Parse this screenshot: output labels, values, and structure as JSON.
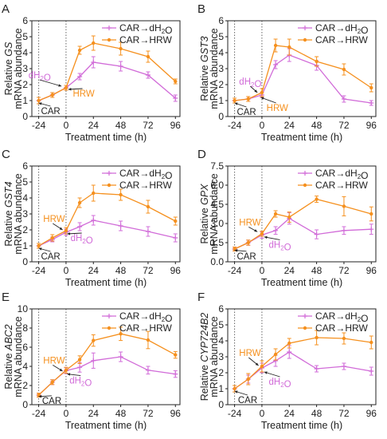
{
  "colors": {
    "water": "#d16bd8",
    "hrw": "#f5901e",
    "axis": "#222222",
    "ref_line": "#666666"
  },
  "chart_data": [
    {
      "panel": "A",
      "type": "line",
      "ylabel_prefix": "Relative",
      "ylabel_gene": "GS",
      "ylabel2": "mRNA abundance",
      "xlabel": "Treatment time (h)",
      "x_ticks": [
        -24,
        0,
        24,
        48,
        72,
        96
      ],
      "xlim": [
        -30,
        100
      ],
      "y_ticks": [
        "0",
        "1",
        "2",
        "3",
        "4",
        "5",
        "6"
      ],
      "ylim": [
        0,
        6
      ],
      "ref_lines": [
        -24,
        0
      ],
      "x": [
        -24,
        -12,
        0,
        12,
        24,
        48,
        72,
        96
      ],
      "series": [
        {
          "name": "CAR→dH₂O",
          "key": "water",
          "values": [
            1.0,
            1.35,
            1.8,
            2.5,
            3.4,
            3.15,
            2.6,
            1.15
          ],
          "err": [
            0.2,
            0.15,
            0.15,
            0.2,
            0.35,
            0.3,
            0.2,
            0.2
          ]
        },
        {
          "name": "CAR→HRW",
          "key": "hrw",
          "values": [
            1.0,
            1.35,
            1.8,
            4.15,
            4.6,
            4.25,
            3.75,
            2.2
          ],
          "err": [
            0.2,
            0.15,
            0.15,
            0.25,
            0.45,
            0.4,
            0.35,
            0.15
          ]
        }
      ],
      "annotations": [
        {
          "text": "dH₂O",
          "key": "water",
          "ax": -33,
          "ay": 2.4,
          "tx": -4,
          "ty": 1.9
        },
        {
          "text": "HRW",
          "key": "hrw",
          "ax": 6,
          "ay": 1.25,
          "tx": 2,
          "ty": 1.7
        },
        {
          "text": "CAR",
          "key": "axis",
          "ax": -22,
          "ay": 0.15,
          "tx": -24,
          "ty": 0.85
        }
      ]
    },
    {
      "panel": "B",
      "type": "line",
      "ylabel_prefix": "Relative",
      "ylabel_gene": "GST3",
      "ylabel2": "mRNA abundance",
      "xlabel": "Treatment time (h)",
      "x_ticks": [
        -24,
        0,
        24,
        48,
        72,
        96
      ],
      "xlim": [
        -30,
        100
      ],
      "y_ticks": [
        "0",
        "1",
        "2",
        "3",
        "4",
        "5",
        "6"
      ],
      "ylim": [
        0,
        6
      ],
      "ref_lines": [
        -24,
        0
      ],
      "x": [
        -24,
        -12,
        0,
        12,
        24,
        48,
        72,
        96
      ],
      "series": [
        {
          "name": "CAR→dH₂O",
          "key": "water",
          "values": [
            1.0,
            1.1,
            1.35,
            3.25,
            3.85,
            3.2,
            1.1,
            0.85
          ],
          "err": [
            0.15,
            0.15,
            0.15,
            0.25,
            0.4,
            0.3,
            0.2,
            0.15
          ]
        },
        {
          "name": "CAR→HRW",
          "key": "hrw",
          "values": [
            1.0,
            1.1,
            1.5,
            4.45,
            4.35,
            3.45,
            2.95,
            1.8
          ],
          "err": [
            0.15,
            0.15,
            0.25,
            0.4,
            0.5,
            0.3,
            0.35,
            0.25
          ]
        }
      ],
      "annotations": [
        {
          "text": "dH₂O",
          "key": "water",
          "ax": -20,
          "ay": 2.0,
          "tx": -4,
          "ty": 1.5
        },
        {
          "text": "HRW",
          "key": "hrw",
          "ax": 4,
          "ay": 0.35,
          "tx": -1,
          "ty": 1.2
        },
        {
          "text": "CAR",
          "key": "axis",
          "ax": -22,
          "ay": 0.1,
          "tx": -24,
          "ty": 0.85
        }
      ]
    },
    {
      "panel": "C",
      "type": "line",
      "ylabel_prefix": "Relative",
      "ylabel_gene": "GST4",
      "ylabel2": "mRNA abundance",
      "xlabel": "Treatment time (h)",
      "x_ticks": [
        -24,
        0,
        24,
        48,
        72,
        96
      ],
      "xlim": [
        -30,
        100
      ],
      "y_ticks": [
        "0",
        "1",
        "2",
        "3",
        "4",
        "5",
        "6"
      ],
      "ylim": [
        0,
        6
      ],
      "ref_lines": [
        -24,
        0
      ],
      "x": [
        -24,
        -12,
        0,
        12,
        24,
        48,
        72,
        96
      ],
      "series": [
        {
          "name": "CAR→dH₂O",
          "key": "water",
          "values": [
            1.0,
            1.4,
            1.85,
            2.2,
            2.6,
            2.25,
            1.9,
            1.5
          ],
          "err": [
            0.15,
            0.15,
            0.2,
            0.25,
            0.3,
            0.3,
            0.3,
            0.25
          ]
        },
        {
          "name": "CAR→HRW",
          "key": "hrw",
          "values": [
            1.0,
            1.5,
            1.95,
            3.7,
            4.3,
            4.2,
            3.45,
            2.55
          ],
          "err": [
            0.15,
            0.2,
            0.2,
            0.3,
            0.5,
            0.35,
            0.4,
            0.25
          ]
        }
      ],
      "annotations": [
        {
          "text": "HRW",
          "key": "hrw",
          "ax": -20,
          "ay": 2.5,
          "tx": -3,
          "ty": 2.0
        },
        {
          "text": "dH₂O",
          "key": "water",
          "ax": 4,
          "ay": 1.3,
          "tx": 1,
          "ty": 1.75
        },
        {
          "text": "CAR",
          "key": "axis",
          "ax": -22,
          "ay": 0.15,
          "tx": -24,
          "ty": 0.85
        }
      ]
    },
    {
      "panel": "D",
      "type": "line",
      "ylabel_prefix": "Relative",
      "ylabel_gene": "GPX",
      "ylabel2": "mRNA abundance",
      "xlabel": "Treatment time (h)",
      "x_ticks": [
        -24,
        0,
        24,
        48,
        72,
        96
      ],
      "xlim": [
        -30,
        100
      ],
      "y_ticks": [
        "0.0",
        "1.5",
        "3.0",
        "4.5",
        "6.0",
        "7.5"
      ],
      "ylim": [
        0,
        7.5
      ],
      "ref_lines": [
        -24,
        0
      ],
      "x": [
        -24,
        -12,
        0,
        12,
        24,
        48,
        72,
        96
      ],
      "series": [
        {
          "name": "CAR→dH₂O",
          "key": "water",
          "values": [
            1.0,
            1.5,
            2.1,
            2.45,
            3.4,
            2.15,
            2.45,
            2.55
          ],
          "err": [
            0.15,
            0.2,
            0.25,
            0.3,
            0.45,
            0.35,
            0.3,
            0.4
          ]
        },
        {
          "name": "CAR→HRW",
          "key": "hrw",
          "values": [
            1.0,
            1.5,
            2.2,
            3.75,
            3.5,
            4.9,
            4.35,
            3.75
          ],
          "err": [
            0.15,
            0.2,
            0.2,
            0.25,
            0.4,
            0.25,
            0.75,
            0.55
          ]
        }
      ],
      "annotations": [
        {
          "text": "HRW",
          "key": "hrw",
          "ax": -20,
          "ay": 2.85,
          "tx": -4,
          "ty": 2.35
        },
        {
          "text": "dH₂O",
          "key": "water",
          "ax": 6,
          "ay": 1.1,
          "tx": 2,
          "ty": 1.95
        },
        {
          "text": "CAR",
          "key": "axis",
          "ax": -22,
          "ay": 0.2,
          "tx": -24,
          "ty": 0.9
        }
      ]
    },
    {
      "panel": "E",
      "type": "line",
      "ylabel_prefix": "Relative",
      "ylabel_gene": "ABC2",
      "ylabel2": "mRNA abundance",
      "xlabel": "Treatment time (h)",
      "x_ticks": [
        -24,
        0,
        24,
        48,
        72,
        96
      ],
      "xlim": [
        -30,
        100
      ],
      "y_ticks": [
        "0",
        "2",
        "4",
        "6",
        "8",
        "10"
      ],
      "ylim": [
        0,
        10
      ],
      "ref_lines": [
        -24,
        0
      ],
      "x": [
        -24,
        -12,
        0,
        12,
        24,
        48,
        72,
        96
      ],
      "series": [
        {
          "name": "CAR→dH₂O",
          "key": "water",
          "values": [
            1.0,
            2.35,
            3.55,
            3.9,
            4.6,
            5.0,
            3.6,
            3.2
          ],
          "err": [
            0.2,
            0.25,
            0.3,
            0.5,
            0.8,
            0.5,
            0.4,
            0.35
          ]
        },
        {
          "name": "CAR→HRW",
          "key": "hrw",
          "values": [
            1.0,
            2.35,
            3.6,
            4.7,
            6.7,
            7.4,
            6.75,
            5.2
          ],
          "err": [
            0.2,
            0.25,
            0.3,
            0.4,
            0.6,
            0.7,
            0.9,
            0.35
          ]
        }
      ],
      "annotations": [
        {
          "text": "HRW",
          "key": "hrw",
          "ax": -20,
          "ay": 4.3,
          "tx": -3,
          "ty": 3.5
        },
        {
          "text": "dH₂O",
          "key": "water",
          "ax": 3,
          "ay": 2.2,
          "tx": 1,
          "ty": 3.2
        },
        {
          "text": "CAR",
          "key": "axis",
          "ax": -21,
          "ay": 0.1,
          "tx": -24,
          "ty": 0.85
        }
      ]
    },
    {
      "panel": "F",
      "type": "line",
      "ylabel_prefix": "Relative",
      "ylabel_gene": "CYP724B2",
      "ylabel2": "mRNA abundance",
      "xlabel": "Treatment time (h)",
      "x_ticks": [
        -24,
        0,
        24,
        48,
        72,
        96
      ],
      "xlim": [
        -30,
        100
      ],
      "y_ticks": [
        "0",
        "1",
        "2",
        "3",
        "4",
        "5",
        "6"
      ],
      "ylim": [
        0,
        6
      ],
      "ref_lines": [
        -24,
        0
      ],
      "x": [
        -24,
        -12,
        0,
        12,
        24,
        48,
        72,
        96
      ],
      "series": [
        {
          "name": "CAR→dH₂O",
          "key": "water",
          "values": [
            1.0,
            1.6,
            2.3,
            2.75,
            3.3,
            2.25,
            2.4,
            2.1
          ],
          "err": [
            0.2,
            0.25,
            0.3,
            0.35,
            0.4,
            0.2,
            0.2,
            0.25
          ]
        },
        {
          "name": "CAR→HRW",
          "key": "hrw",
          "values": [
            1.0,
            1.6,
            2.4,
            3.15,
            3.85,
            4.2,
            4.15,
            3.9
          ],
          "err": [
            0.2,
            0.35,
            0.35,
            0.35,
            0.3,
            0.45,
            0.35,
            0.4
          ]
        }
      ],
      "annotations": [
        {
          "text": "HRW",
          "key": "hrw",
          "ax": -20,
          "ay": 3.05,
          "tx": -3,
          "ty": 2.45
        },
        {
          "text": "dH₂O",
          "key": "water",
          "ax": 6,
          "ay": 1.25,
          "tx": 2,
          "ty": 2.05
        },
        {
          "text": "CAR",
          "key": "axis",
          "ax": -21,
          "ay": 0.1,
          "tx": -24,
          "ty": 0.85
        }
      ]
    }
  ]
}
